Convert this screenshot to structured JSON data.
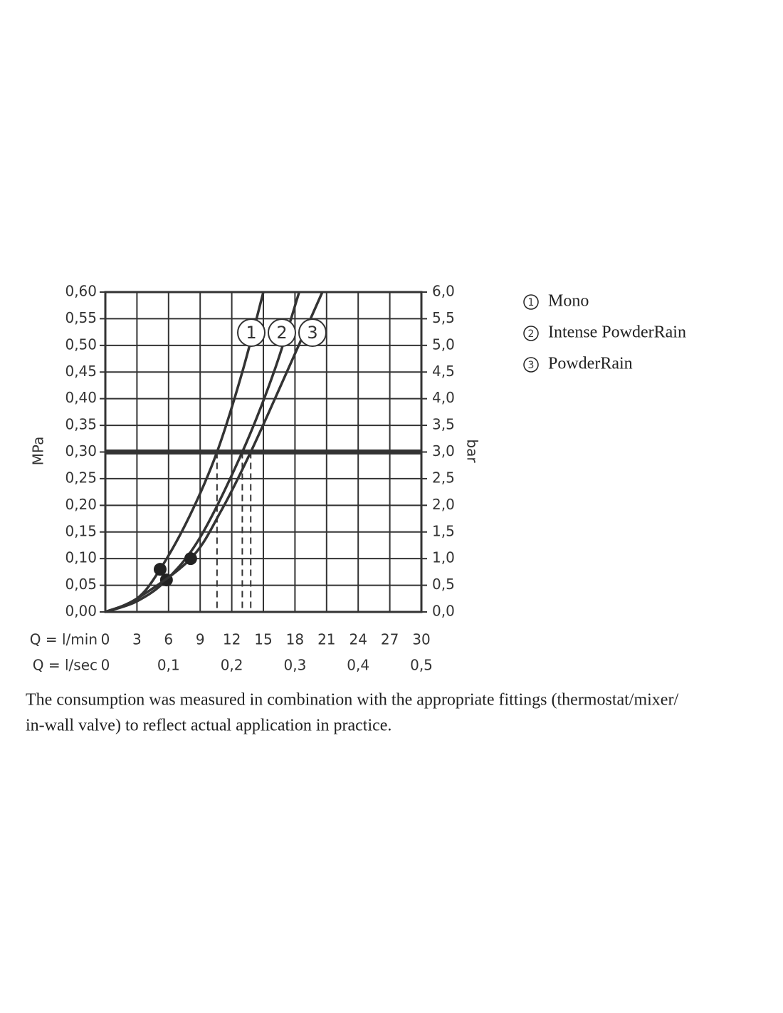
{
  "chart_data": {
    "type": "line",
    "y_label": "MPa",
    "y2_label": "bar",
    "x_row_label": "Q = l/min",
    "x2_row_label": "Q = l/sec",
    "xlim": [
      0,
      30
    ],
    "xticks": [
      0,
      3,
      6,
      9,
      12,
      15,
      18,
      21,
      24,
      27,
      30
    ],
    "x2lim": [
      0,
      0.5
    ],
    "x2ticks": [
      0,
      {
        "value": 0.1,
        "label": "0,1"
      },
      {
        "value": 0.2,
        "label": "0,2"
      },
      {
        "value": 0.3,
        "label": "0,3"
      },
      {
        "value": 0.4,
        "label": "0,4"
      },
      {
        "value": 0.5,
        "label": "0,5"
      }
    ],
    "ylim": [
      0,
      0.6
    ],
    "yticks": [
      {
        "value": 0,
        "label": "0,00"
      },
      {
        "value": 0.05,
        "label": "0,05"
      },
      {
        "value": 0.1,
        "label": "0,10"
      },
      {
        "value": 0.15,
        "label": "0,15"
      },
      {
        "value": 0.2,
        "label": "0,20"
      },
      {
        "value": 0.25,
        "label": "0,25"
      },
      {
        "value": 0.3,
        "label": "0,30"
      },
      {
        "value": 0.35,
        "label": "0,35"
      },
      {
        "value": 0.4,
        "label": "0,40"
      },
      {
        "value": 0.45,
        "label": "0,45"
      },
      {
        "value": 0.5,
        "label": "0,50"
      },
      {
        "value": 0.55,
        "label": "0,55"
      },
      {
        "value": 0.6,
        "label": "0,60"
      }
    ],
    "y2lim": [
      0,
      6
    ],
    "y2ticks": [
      {
        "value": 0,
        "label": "0,0"
      },
      {
        "value": 0.5,
        "label": "0,5"
      },
      {
        "value": 1,
        "label": "1,0"
      },
      {
        "value": 1.5,
        "label": "1,5"
      },
      {
        "value": 2,
        "label": "2,0"
      },
      {
        "value": 2.5,
        "label": "2,5"
      },
      {
        "value": 3,
        "label": "3,0"
      },
      {
        "value": 3.5,
        "label": "3,5"
      },
      {
        "value": 4,
        "label": "4,0"
      },
      {
        "value": 4.5,
        "label": "4,5"
      },
      {
        "value": 5,
        "label": "5,0"
      },
      {
        "value": 5.5,
        "label": "5,5"
      },
      {
        "value": 6,
        "label": "6,0"
      }
    ],
    "grid": true,
    "reference_y": 0.3,
    "series": [
      {
        "label": "1",
        "name": "Mono",
        "color": "#333333",
        "x": [
          0,
          3,
          5.2,
          8,
          10.6,
          13,
          15
        ],
        "values": [
          0,
          0.025,
          0.08,
          0.18,
          0.3,
          0.45,
          0.6
        ],
        "marker_x": 5.2,
        "marker_value": 0.08
      },
      {
        "label": "2",
        "name": "Intense PowderRain",
        "color": "#333333",
        "x": [
          0,
          3,
          5.8,
          9,
          13,
          16,
          18.4
        ],
        "values": [
          0,
          0.02,
          0.06,
          0.14,
          0.3,
          0.45,
          0.6
        ],
        "marker_x": 5.8,
        "marker_value": 0.06
      },
      {
        "label": "3",
        "name": "PowderRain",
        "color": "#333333",
        "x": [
          0,
          3,
          8.1,
          11,
          13.8,
          17,
          20.6
        ],
        "values": [
          0,
          0.025,
          0.1,
          0.19,
          0.3,
          0.44,
          0.6
        ],
        "marker_x": 8.1,
        "marker_value": 0.1
      }
    ],
    "note_lines": [
      "The consumption was measured in combination with the appropriate fittings (thermostat/mixer/",
      "in-wall valve) to reflect actual application in practice."
    ]
  }
}
